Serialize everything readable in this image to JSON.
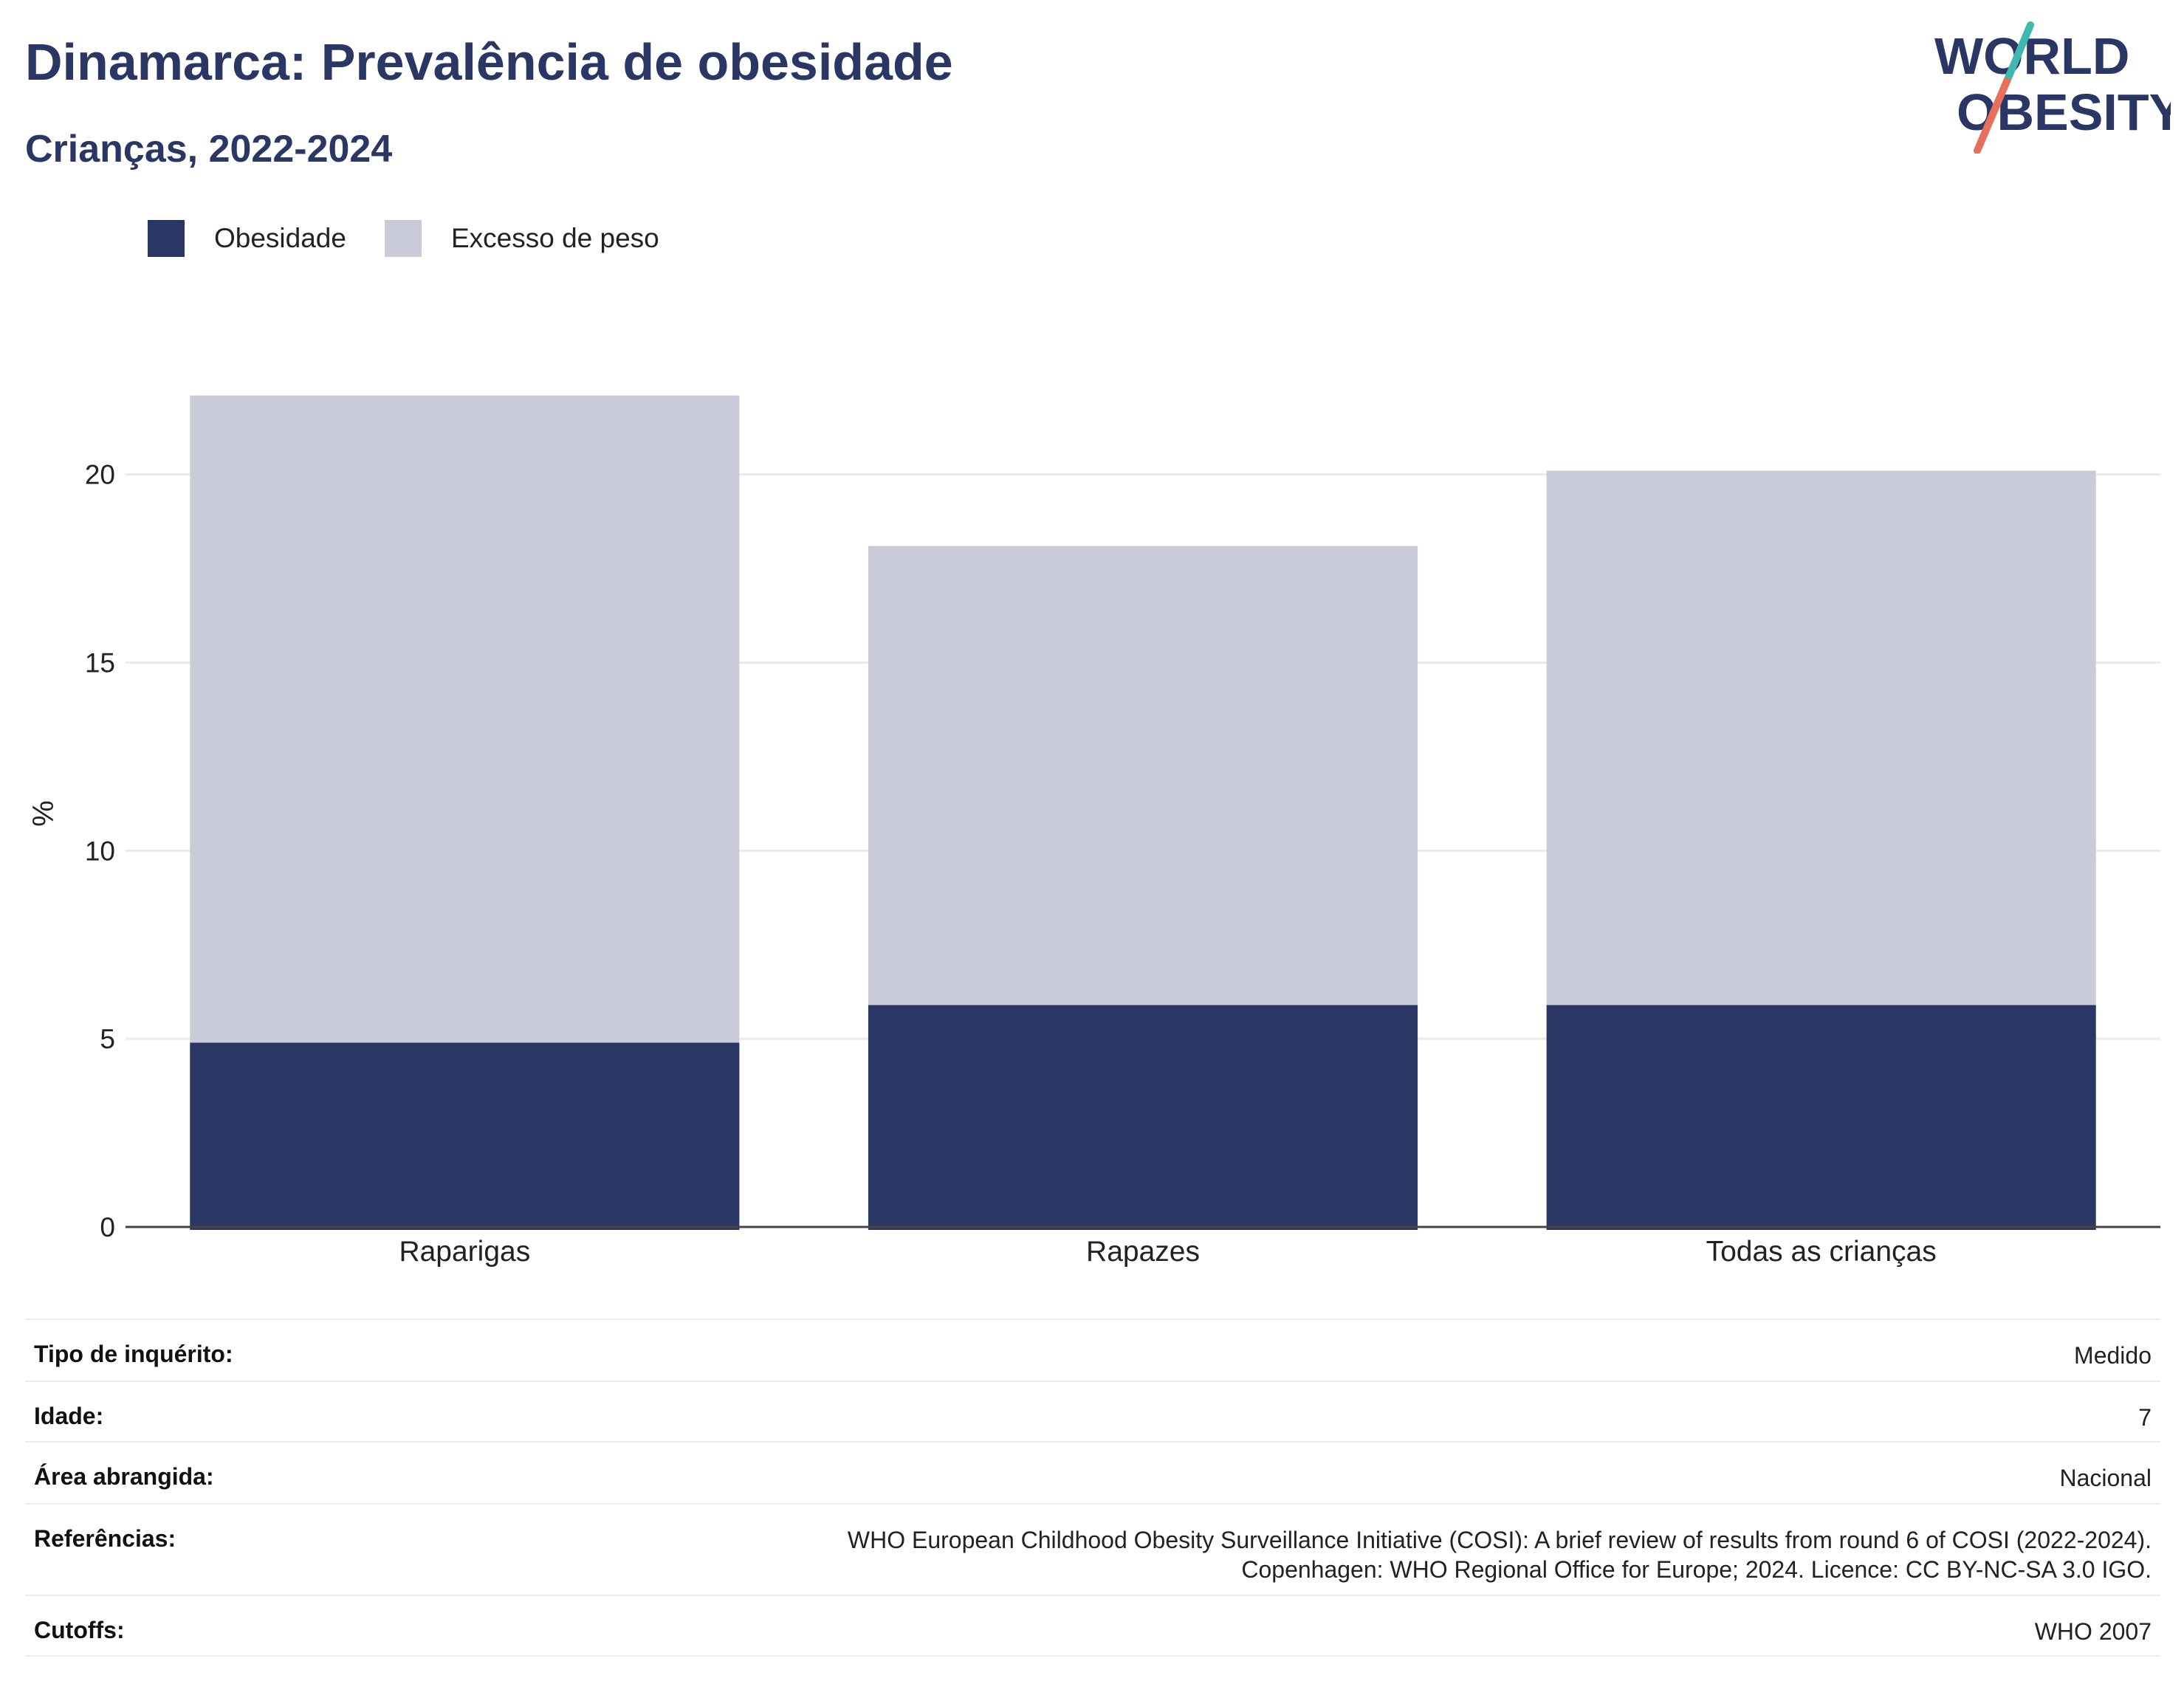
{
  "header": {
    "title": "Dinamarca: Prevalência de obesidade",
    "subtitle": "Crianças, 2022-2024",
    "logo_line1": "WORLD",
    "logo_line2": "OBESITY"
  },
  "legend": {
    "items": [
      {
        "label": "Obesidade",
        "color": "#2a3664"
      },
      {
        "label": "Excesso de peso",
        "color": "#c9ccd8"
      }
    ]
  },
  "chart_data": {
    "type": "bar",
    "stacked": true,
    "categories": [
      "Raparigas",
      "Rapazes",
      "Todas as crianças"
    ],
    "series": [
      {
        "name": "Obesidade",
        "values": [
          4.9,
          5.9,
          5.9
        ],
        "color": "#2a3664"
      },
      {
        "name": "Excesso de peso",
        "values": [
          17.2,
          12.2,
          14.2
        ],
        "color": "#c9ccd8"
      }
    ],
    "xlabel": "",
    "ylabel": "%",
    "ylim": [
      0,
      22.8
    ],
    "yticks": [
      0,
      5,
      10,
      15,
      20
    ],
    "grid": true,
    "legend_position": "top-left"
  },
  "info": {
    "rows": [
      {
        "key": "Tipo de inquérito:",
        "value": [
          "Medido"
        ]
      },
      {
        "key": "Idade:",
        "value": [
          "7"
        ]
      },
      {
        "key": "Área abrangida:",
        "value": [
          "Nacional"
        ]
      },
      {
        "key": "Referências:",
        "value": [
          "WHO European Childhood Obesity Surveillance Initiative (COSI): A brief review of results from round 6 of COSI (2022-2024).",
          "Copenhagen: WHO Regional Office for Europe; 2024. Licence: CC BY-NC-SA 3.0 IGO."
        ]
      },
      {
        "key": "Cutoffs:",
        "value": [
          "WHO 2007"
        ]
      }
    ]
  }
}
